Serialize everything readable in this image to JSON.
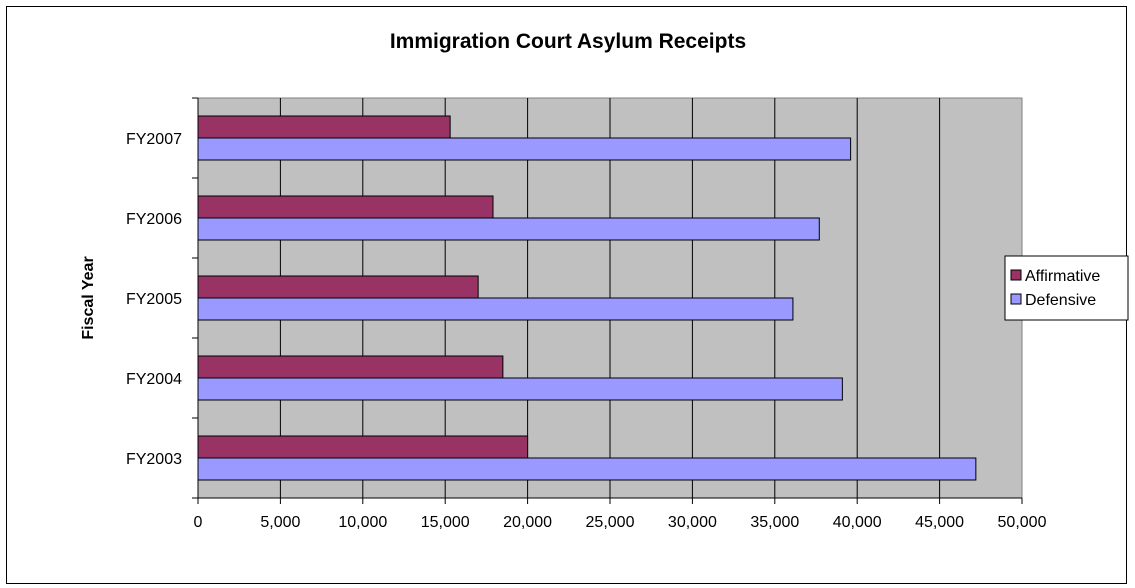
{
  "chart_data": {
    "type": "bar",
    "orientation": "horizontal",
    "title": "Immigration Court Asylum Receipts",
    "xlabel": "",
    "ylabel": "Fiscal Year",
    "categories": [
      "FY2003",
      "FY2004",
      "FY2005",
      "FY2006",
      "FY2007"
    ],
    "series": [
      {
        "name": "Affirmative",
        "values": [
          20000,
          18500,
          17000,
          17900,
          15300
        ],
        "color": "#993366"
      },
      {
        "name": "Defensive",
        "values": [
          47200,
          39100,
          36100,
          37700,
          39600
        ],
        "color": "#9999FF"
      }
    ],
    "xlim": [
      0,
      50000
    ],
    "xticks": [
      0,
      5000,
      10000,
      15000,
      20000,
      25000,
      30000,
      35000,
      40000,
      45000,
      50000
    ],
    "xtick_labels": [
      "0",
      "5,000",
      "10,000",
      "15,000",
      "20,000",
      "25,000",
      "30,000",
      "35,000",
      "40,000",
      "45,000",
      "50,000"
    ],
    "grid": "vertical",
    "plot_background": "#C0C0C0",
    "legend_position": "right"
  }
}
